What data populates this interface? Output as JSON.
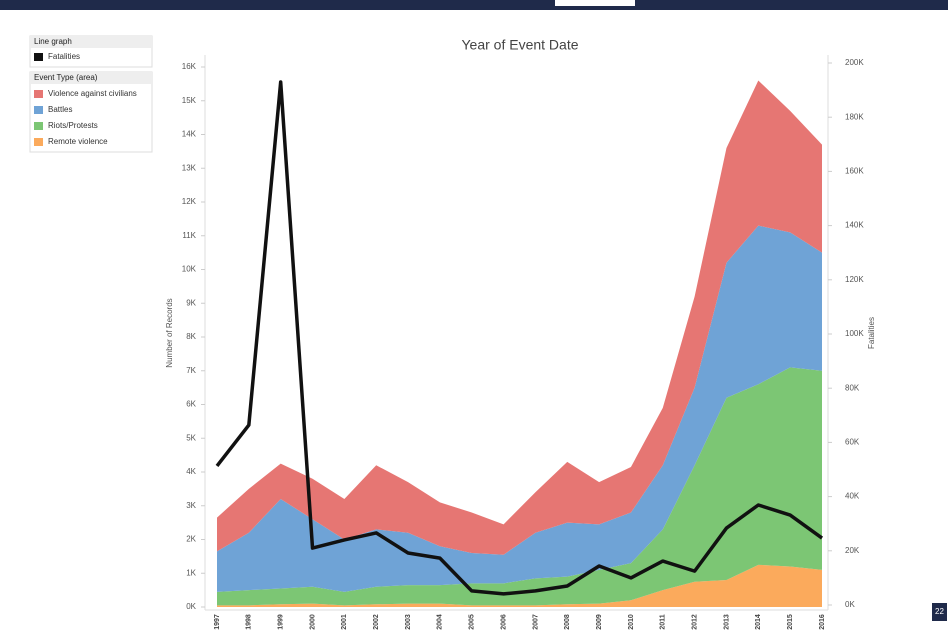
{
  "chart_data": {
    "type": "stacked-area-line",
    "title": "Year of Event Date",
    "y_label": "Number of Records",
    "y2_label": "Fatalities",
    "line_legend_title": "Line graph",
    "area_legend_title": "Event Type (area)",
    "page_number": "22",
    "categories": [
      "1997",
      "1998",
      "1999",
      "2000",
      "2001",
      "2002",
      "2003",
      "2004",
      "2005",
      "2006",
      "2007",
      "2008",
      "2009",
      "2010",
      "2011",
      "2012",
      "2013",
      "2014",
      "2015",
      "2016"
    ],
    "series": [
      {
        "name": "Fatalities",
        "color": "#111111",
        "axis": "y2",
        "kind": "line",
        "values": [
          51300,
          66400,
          193000,
          21000,
          24000,
          26600,
          19200,
          17300,
          5200,
          4100,
          5200,
          7000,
          14400,
          10000,
          16200,
          12500,
          28400,
          36900,
          33200,
          24700
        ]
      },
      {
        "name": "Violence against civilians",
        "color": "#e67673",
        "kind": "area",
        "values": [
          1000,
          1300,
          1050,
          1200,
          1200,
          1900,
          1500,
          1300,
          1200,
          900,
          1200,
          1800,
          1250,
          1350,
          1700,
          2700,
          3400,
          4300,
          3600,
          3200
        ]
      },
      {
        "name": "Battles",
        "color": "#6fa3d6",
        "kind": "area",
        "values": [
          1200,
          1700,
          2650,
          2000,
          1550,
          1700,
          1550,
          1150,
          900,
          850,
          1350,
          1600,
          1350,
          1500,
          1900,
          2300,
          4000,
          4700,
          4000,
          3500
        ]
      },
      {
        "name": "Riots/Protests",
        "color": "#7cc674",
        "kind": "area",
        "values": [
          400,
          450,
          470,
          500,
          400,
          520,
          550,
          550,
          650,
          650,
          800,
          820,
          1000,
          1100,
          1800,
          3450,
          5400,
          5350,
          5900,
          5900
        ]
      },
      {
        "name": "Remote violence",
        "color": "#fbaa5c",
        "kind": "area",
        "values": [
          50,
          50,
          80,
          100,
          50,
          80,
          100,
          100,
          50,
          50,
          50,
          80,
          100,
          200,
          500,
          750,
          800,
          1250,
          1200,
          1100
        ]
      }
    ],
    "ylim": [
      0,
      16000
    ],
    "yticks": [
      {
        "value": 0,
        "label": "0K"
      },
      {
        "value": 1000,
        "label": "1K"
      },
      {
        "value": 2000,
        "label": "2K"
      },
      {
        "value": 3000,
        "label": "3K"
      },
      {
        "value": 4000,
        "label": "4K"
      },
      {
        "value": 5000,
        "label": "5K"
      },
      {
        "value": 6000,
        "label": "6K"
      },
      {
        "value": 7000,
        "label": "7K"
      },
      {
        "value": 8000,
        "label": "8K"
      },
      {
        "value": 9000,
        "label": "9K"
      },
      {
        "value": 10000,
        "label": "10K"
      },
      {
        "value": 11000,
        "label": "11K"
      },
      {
        "value": 12000,
        "label": "12K"
      },
      {
        "value": 13000,
        "label": "13K"
      },
      {
        "value": 14000,
        "label": "14K"
      },
      {
        "value": 15000,
        "label": "15K"
      },
      {
        "value": 16000,
        "label": "16K"
      }
    ],
    "y2lim": [
      0,
      200000
    ],
    "y2ticks": [
      {
        "value": 0,
        "label": "0K"
      },
      {
        "value": 20000,
        "label": "20K"
      },
      {
        "value": 40000,
        "label": "40K"
      },
      {
        "value": 60000,
        "label": "60K"
      },
      {
        "value": 80000,
        "label": "80K"
      },
      {
        "value": 100000,
        "label": "100K"
      },
      {
        "value": 120000,
        "label": "120K"
      },
      {
        "value": 140000,
        "label": "140K"
      },
      {
        "value": 160000,
        "label": "160K"
      },
      {
        "value": 180000,
        "label": "180K"
      },
      {
        "value": 200000,
        "label": "200K"
      }
    ],
    "grid": false
  }
}
